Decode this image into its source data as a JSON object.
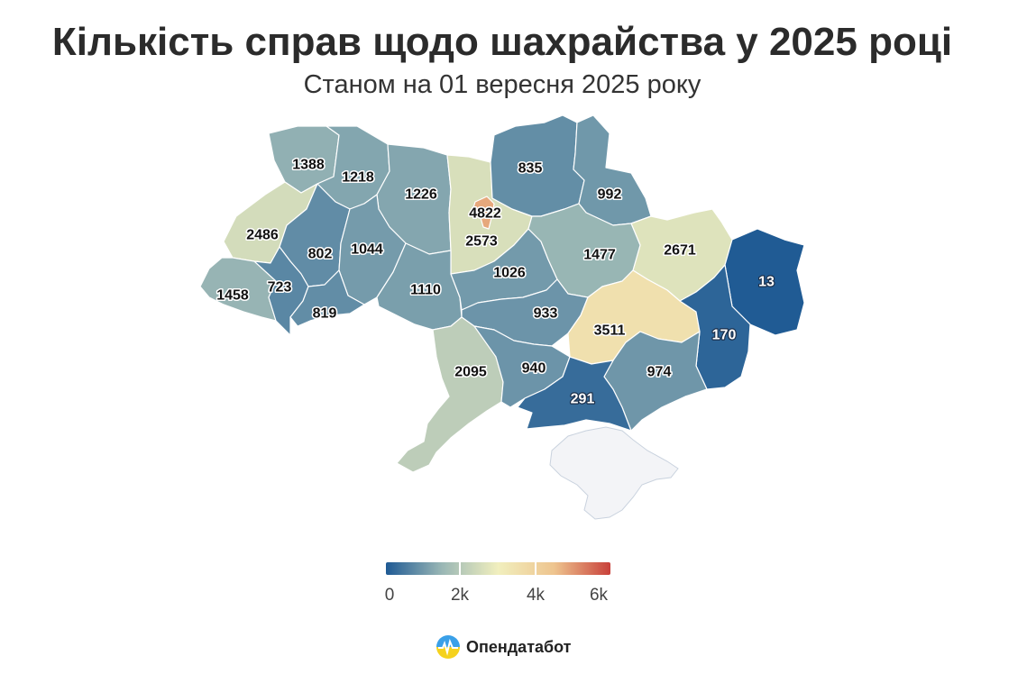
{
  "title": "Кількість справ щодо шахрайства у 2025 році",
  "subtitle": "Станом на 01 вересня 2025 року",
  "brand": "Опендатабот",
  "legend": {
    "ticks": [
      "0",
      "2k",
      "4k",
      "6k"
    ],
    "min": 0,
    "max": 6000,
    "colors": [
      "#1f5a94",
      "#9ab7b5",
      "#f1efbe",
      "#eec48e",
      "#c8403a"
    ]
  },
  "chart_data": {
    "type": "choropleth",
    "title": "Кількість справ щодо шахрайства у 2025 році",
    "subtitle": "Станом на 01 вересня 2025 року",
    "scale": {
      "min": 0,
      "max": 6000,
      "ticks": [
        "0",
        "2k",
        "4k",
        "6k"
      ]
    },
    "regions": [
      {
        "id": "volyn",
        "value": 1388
      },
      {
        "id": "rivne",
        "value": 1218
      },
      {
        "id": "zhytomyr",
        "value": 1226
      },
      {
        "id": "kyiv-oblast",
        "value": 2573
      },
      {
        "id": "kyiv-city",
        "value": 4822
      },
      {
        "id": "chernihiv",
        "value": 835
      },
      {
        "id": "sumy",
        "value": 992
      },
      {
        "id": "kharkiv",
        "value": 2671
      },
      {
        "id": "luhansk",
        "value": 13
      },
      {
        "id": "lviv",
        "value": 2486
      },
      {
        "id": "ternopil",
        "value": 802
      },
      {
        "id": "khmelnytskyi",
        "value": 1044
      },
      {
        "id": "vinnytsia",
        "value": 1110
      },
      {
        "id": "cherkasy",
        "value": 1026
      },
      {
        "id": "poltava",
        "value": 1477
      },
      {
        "id": "zakarpattia",
        "value": 1458
      },
      {
        "id": "ivano-frankivsk",
        "value": 723
      },
      {
        "id": "chernivtsi",
        "value": 819
      },
      {
        "id": "kirovohrad",
        "value": 933
      },
      {
        "id": "dnipropetrovsk",
        "value": 3511
      },
      {
        "id": "donetsk",
        "value": 170
      },
      {
        "id": "odesa",
        "value": 2095
      },
      {
        "id": "mykolaiv",
        "value": 940
      },
      {
        "id": "zaporizhzhia",
        "value": 974
      },
      {
        "id": "kherson",
        "value": 291
      }
    ]
  }
}
